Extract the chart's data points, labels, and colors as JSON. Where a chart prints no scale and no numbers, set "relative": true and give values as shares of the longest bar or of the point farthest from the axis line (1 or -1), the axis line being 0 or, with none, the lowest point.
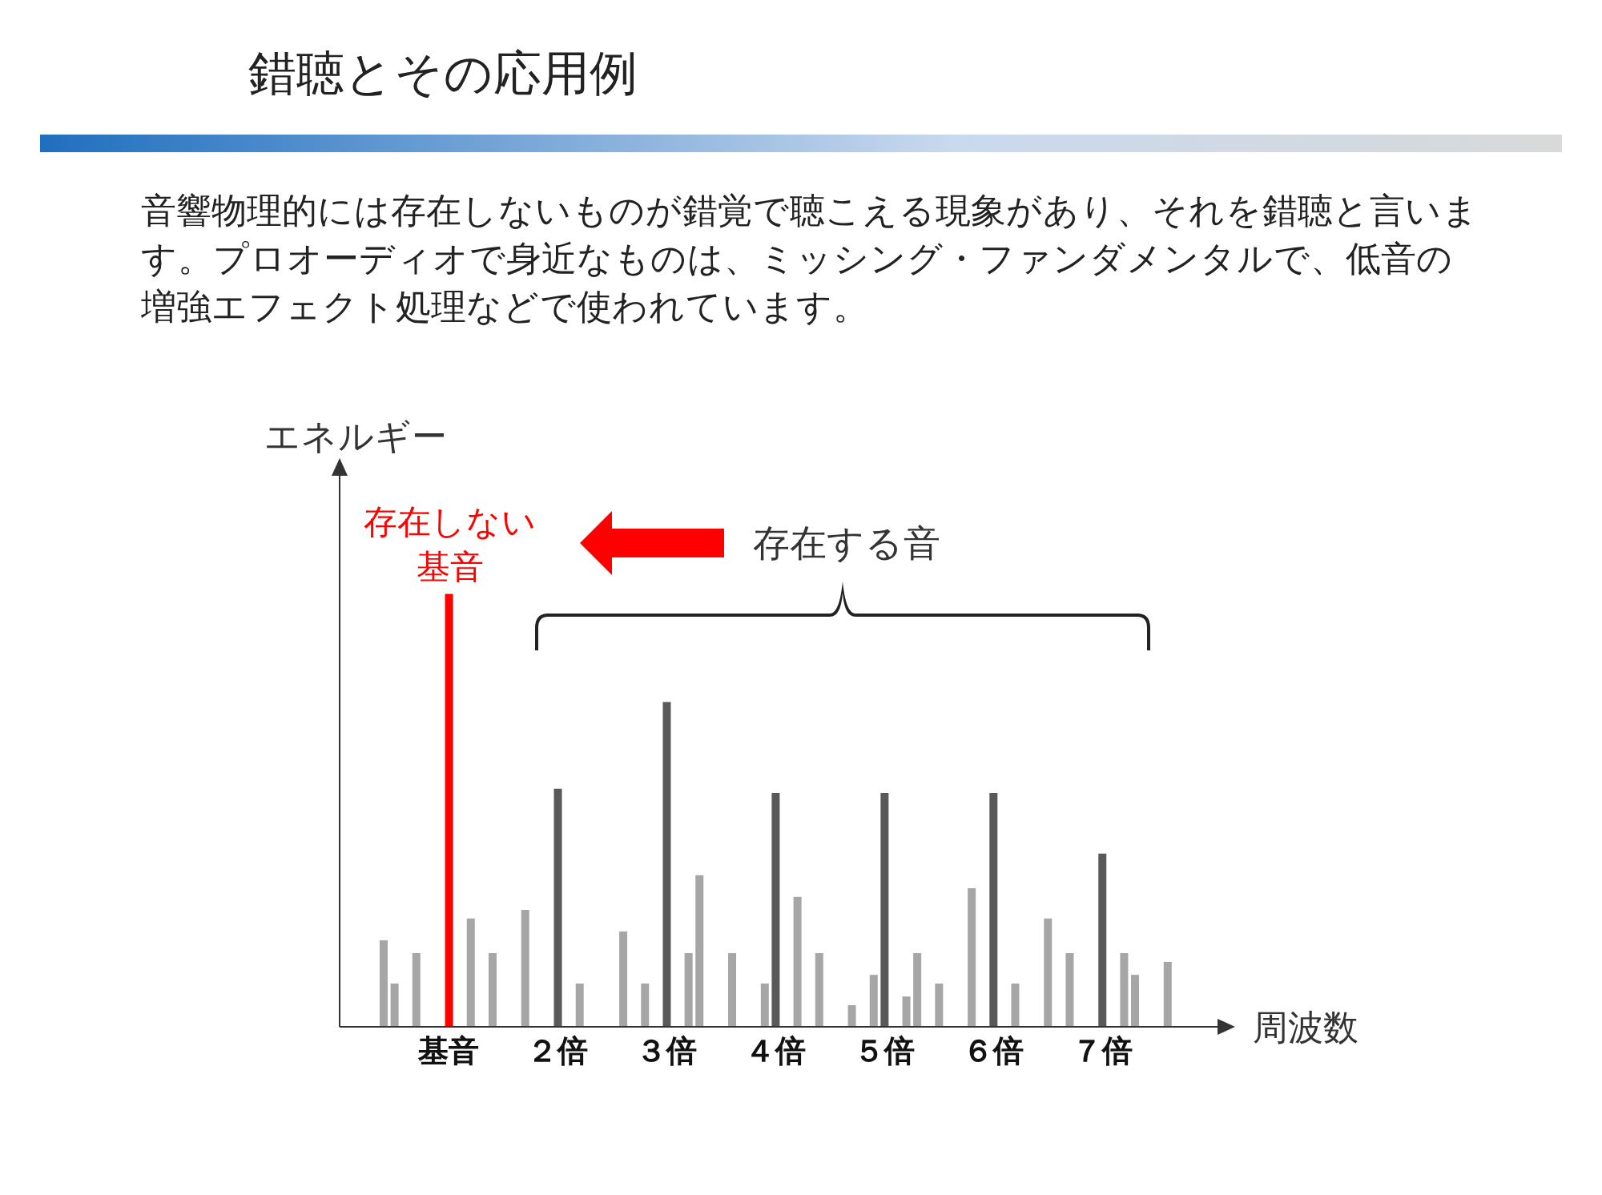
{
  "chart_data": {
    "type": "bar",
    "relative": true,
    "title": "錯聴とその応用例",
    "subtitle": "音響物理的には存在しないものが錯覚で聴こえる現象があり、それを錯聴と言います。プロオーディオで身近なものは、ミッシング・ファンダメンタルで、低音の増強エフェクト処理などで使われています。",
    "xlabel": "周波数",
    "ylabel": "エネルギー",
    "annotations": [
      "存在しない基音",
      "存在する音"
    ],
    "categories": [
      null,
      null,
      null,
      null,
      null,
      null,
      "基音",
      null,
      null,
      null,
      null,
      null,
      null,
      null,
      null,
      null,
      "２倍",
      null,
      null,
      null,
      null,
      null,
      null,
      null,
      null,
      null,
      "３倍",
      null,
      null,
      null,
      null,
      null,
      null,
      null,
      null,
      null,
      "４倍",
      null,
      null,
      null,
      null,
      null,
      null,
      null,
      null,
      null,
      "５倍",
      null,
      null,
      null,
      null,
      null,
      null,
      null,
      null,
      null,
      "６倍",
      null,
      null,
      null,
      null,
      null,
      null,
      null,
      null,
      null,
      "７倍",
      null,
      null,
      null,
      null,
      null,
      null,
      null
    ],
    "values": [
      0.2,
      0.1,
      null,
      0.17,
      null,
      null,
      1,
      null,
      0.25,
      null,
      0.17,
      null,
      null,
      0.27,
      null,
      null,
      0.55,
      null,
      0.1,
      null,
      null,
      null,
      0.22,
      null,
      0.1,
      null,
      0.75,
      null,
      0.17,
      0.35,
      null,
      null,
      0.17,
      null,
      null,
      0.1,
      0.54,
      null,
      0.3,
      null,
      0.17,
      null,
      null,
      0.05,
      null,
      0.12,
      0.54,
      null,
      0.07,
      0.17,
      null,
      0.1,
      null,
      null,
      0.32,
      null,
      0.54,
      null,
      0.1,
      null,
      null,
      0.25,
      null,
      0.17,
      null,
      null,
      0.4,
      null,
      0.17,
      0.12,
      null,
      null,
      0.15,
      null
    ],
    "colors": [
      "#a6a6a6",
      "#a6a6a6",
      null,
      "#a6a6a6",
      null,
      null,
      "#ff0000",
      null,
      "#a6a6a6",
      null,
      "#a6a6a6",
      null,
      null,
      "#a6a6a6",
      null,
      null,
      "#595959",
      null,
      "#a6a6a6",
      null,
      null,
      null,
      "#a6a6a6",
      null,
      "#a6a6a6",
      null,
      "#595959",
      null,
      "#a6a6a6",
      "#a6a6a6",
      null,
      null,
      "#a6a6a6",
      null,
      null,
      "#a6a6a6",
      "#595959",
      null,
      "#a6a6a6",
      null,
      "#a6a6a6",
      null,
      null,
      "#a6a6a6",
      null,
      "#a6a6a6",
      "#595959",
      null,
      "#a6a6a6",
      "#a6a6a6",
      null,
      "#a6a6a6",
      null,
      null,
      "#a6a6a6",
      null,
      "#595959",
      null,
      "#a6a6a6",
      null,
      null,
      "#a6a6a6",
      null,
      "#a6a6a6",
      null,
      null,
      "#595959",
      null,
      "#a6a6a6",
      "#a6a6a6",
      null,
      null,
      "#a6a6a6",
      null
    ]
  }
}
